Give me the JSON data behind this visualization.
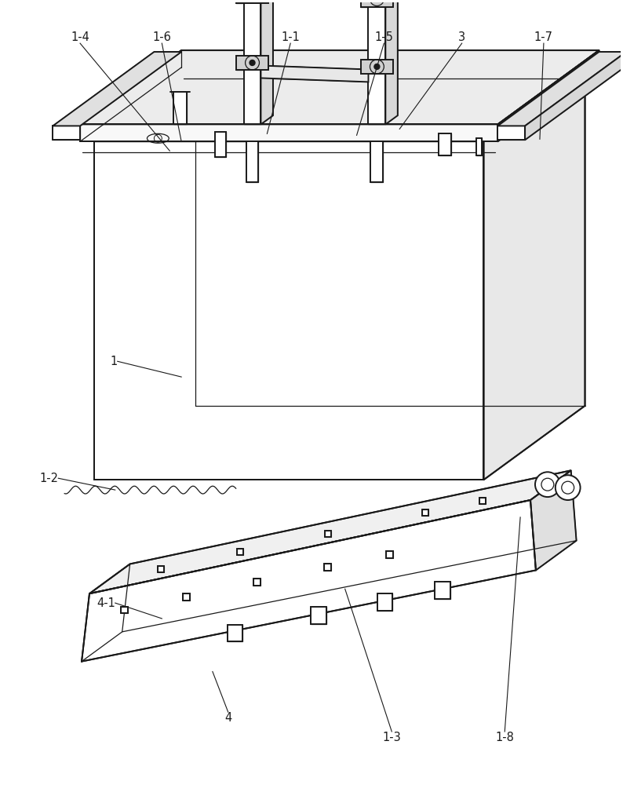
{
  "background_color": "#ffffff",
  "line_color": "#1a1a1a",
  "fig_width": 7.94,
  "fig_height": 10.0,
  "lw_main": 1.4,
  "lw_thin": 0.9,
  "lw_ann": 0.8,
  "label_fontsize": 10.5
}
